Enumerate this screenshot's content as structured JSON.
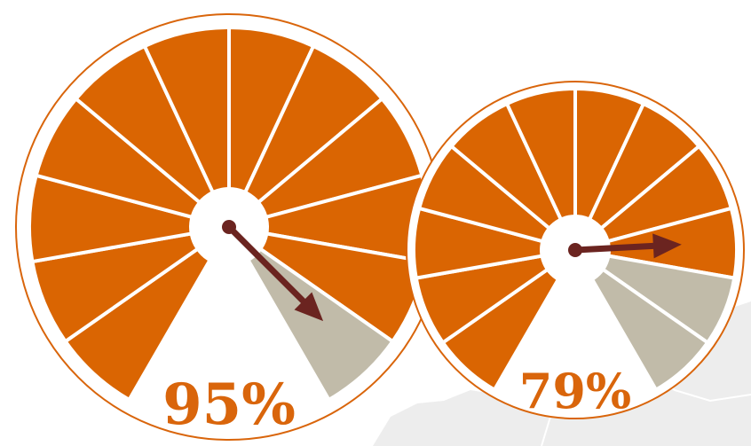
{
  "colors": {
    "background": "#ffffff",
    "map_land": "#ededed",
    "map_border": "#ffffff",
    "wedge_fill": "#da6502",
    "wedge_inactive": "#c1bba9",
    "rim": "#d9650b",
    "needle": "#6b2420",
    "label": "#d9650b"
  },
  "chart_data": [
    {
      "type": "gauge",
      "value": 95,
      "value_label": "95%",
      "segments": 12,
      "filled_segments": 11,
      "inactive_segments": 1,
      "range": [
        0,
        100
      ]
    },
    {
      "type": "gauge",
      "value": 79,
      "value_label": "79%",
      "segments": 12,
      "filled_segments": 10,
      "inactive_segments": 2,
      "range": [
        0,
        100
      ]
    }
  ]
}
